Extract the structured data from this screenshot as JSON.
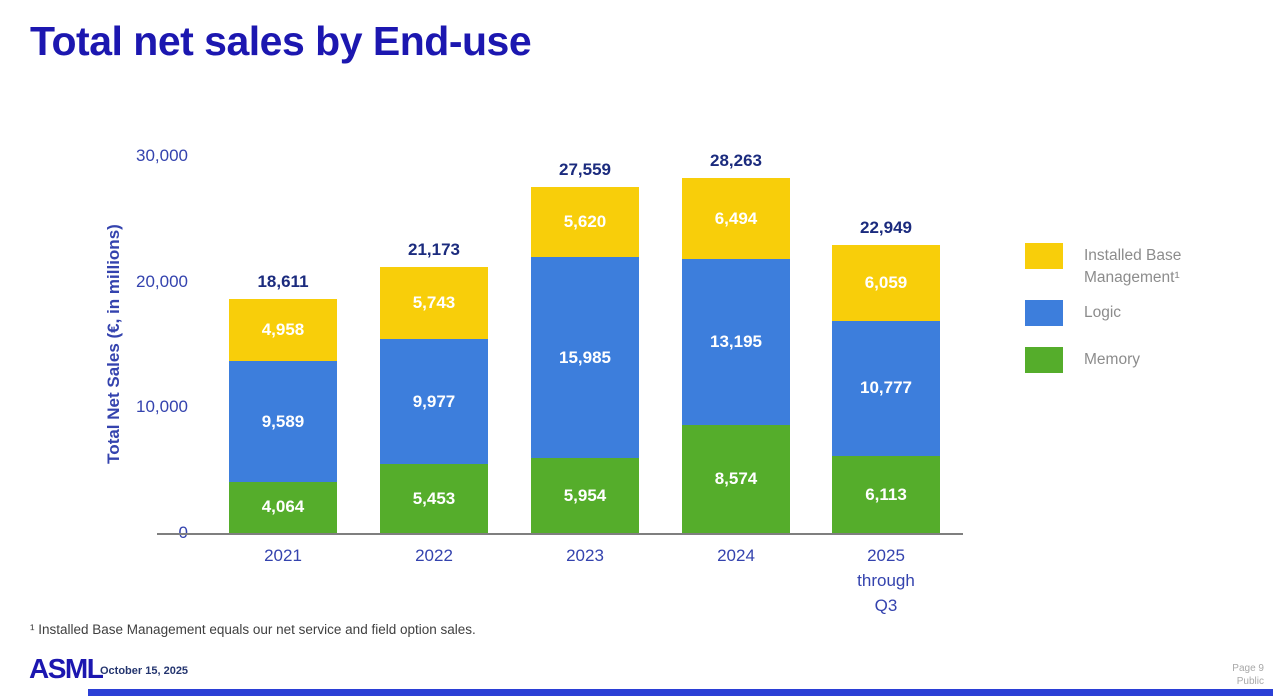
{
  "slide": {
    "title": "Total net sales by End-use",
    "footnote": "¹ Installed Base Management equals our net service and field option sales.",
    "footer": {
      "logo": "ASML",
      "date": "October 15, 2025",
      "page": "Page 9",
      "classification": "Public"
    }
  },
  "chart_data": {
    "type": "bar",
    "stacked": true,
    "title": "Total net sales by End-use",
    "xlabel": "",
    "ylabel": "Total Net Sales (€, in millions)",
    "ylim": [
      0,
      30000
    ],
    "grid": false,
    "yticks": [
      {
        "value": 0,
        "label": "0"
      },
      {
        "value": 10000,
        "label": "10,000"
      },
      {
        "value": 20000,
        "label": "20,000"
      },
      {
        "value": 30000,
        "label": "30,000"
      }
    ],
    "categories": [
      "2021",
      "2022",
      "2023",
      "2024",
      "2025\nthrough\nQ3"
    ],
    "series": [
      {
        "name": "Memory",
        "color": "#55ad2b",
        "values": [
          4064,
          5453,
          5954,
          8574,
          6113
        ],
        "labels": [
          "4,064",
          "5,453",
          "5,954",
          "8,574",
          "6,113"
        ]
      },
      {
        "name": "Logic",
        "color": "#3d7edc",
        "values": [
          9589,
          9977,
          15985,
          13195,
          10777
        ],
        "labels": [
          "9,589",
          "9,977",
          "15,985",
          "13,195",
          "10,777"
        ]
      },
      {
        "name": "Installed Base Management",
        "color": "#f8ce0a",
        "values": [
          4958,
          5743,
          5620,
          6494,
          6059
        ],
        "labels": [
          "4,958",
          "5,743",
          "5,620",
          "6,494",
          "6,059"
        ]
      }
    ],
    "totals": [
      18611,
      21173,
      27559,
      28263,
      22949
    ],
    "totals_labels": [
      "18,611",
      "21,173",
      "27,559",
      "28,263",
      "22,949"
    ],
    "legend": {
      "position": "right",
      "items": [
        {
          "label": "Installed Base\nManagement¹",
          "color": "#f8ce0a"
        },
        {
          "label": "Logic",
          "color": "#3d7edc"
        },
        {
          "label": "Memory",
          "color": "#55ad2b"
        }
      ]
    }
  }
}
